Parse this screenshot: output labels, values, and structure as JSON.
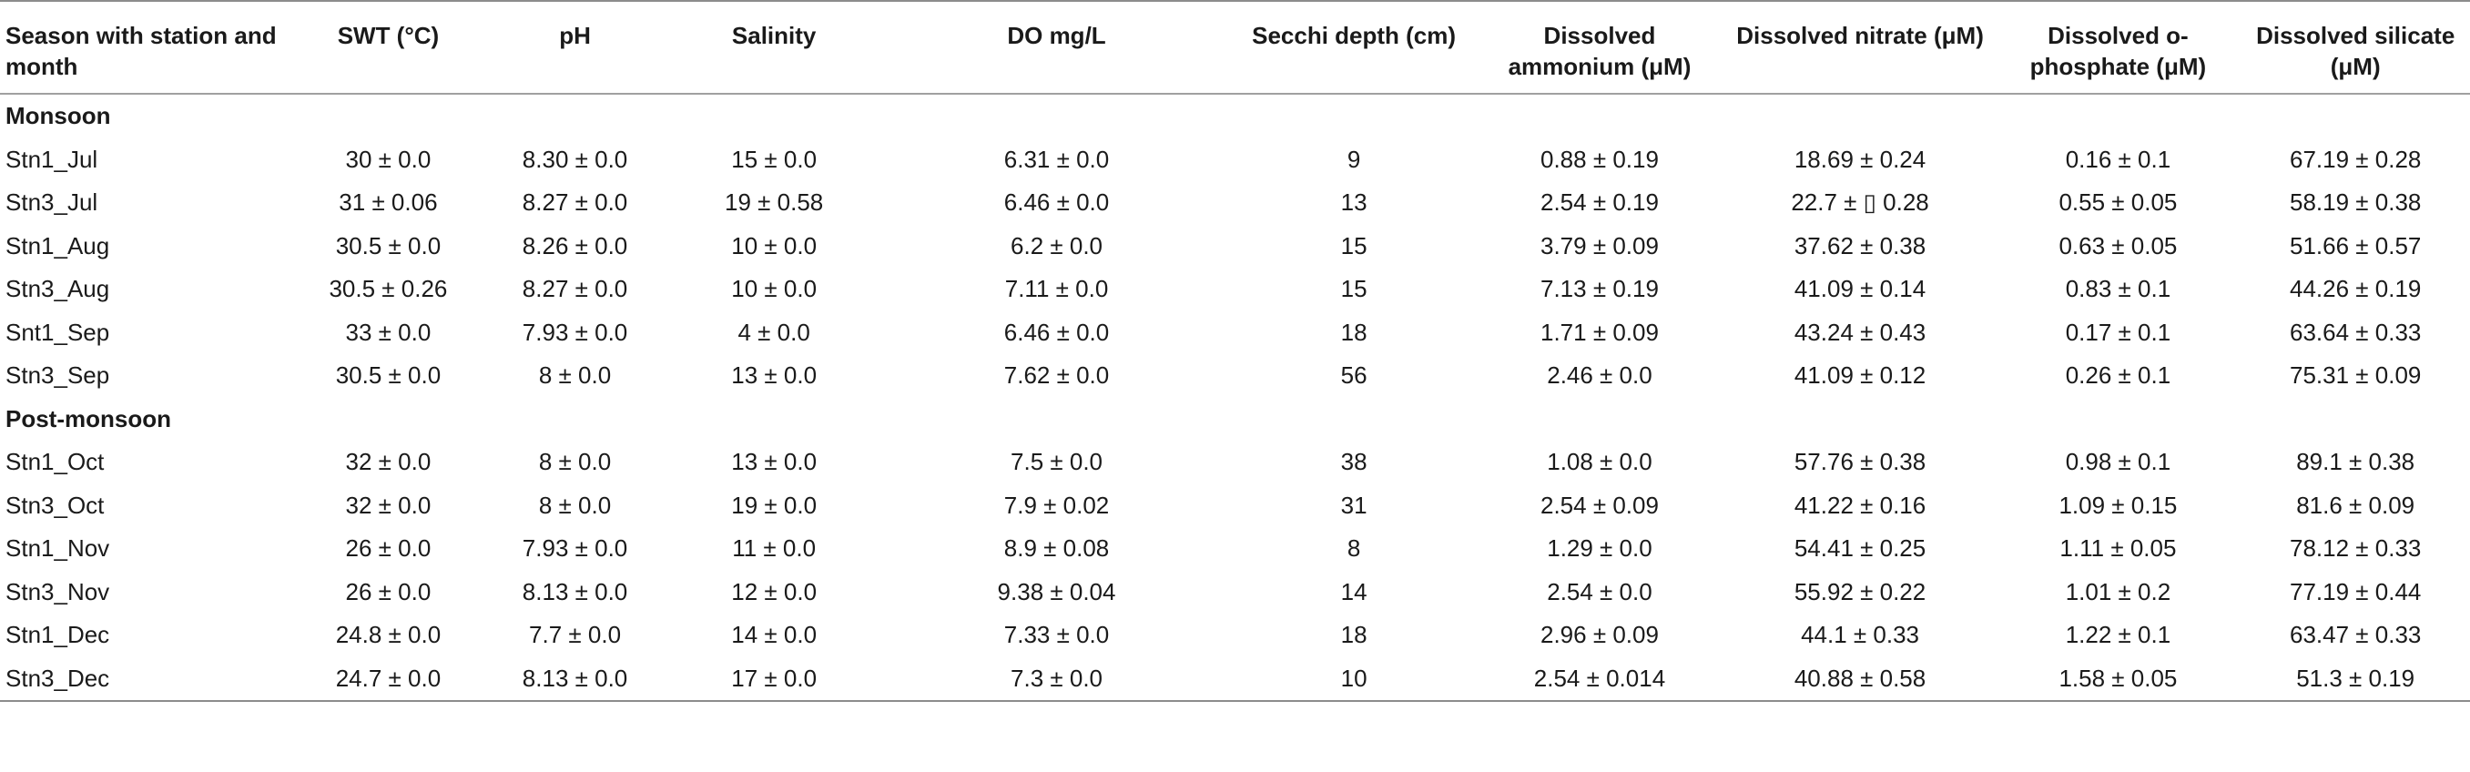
{
  "table": {
    "headers": [
      "Season with station and month",
      "SWT (°C)",
      "pH",
      "Salinity",
      "DO mg/L",
      "Secchi depth (cm)",
      "Dissolved ammonium (μM)",
      "Dissolved nitrate (μM)",
      "Dissolved o-phosphate (μM)",
      "Dissolved silicate (μM)"
    ],
    "sections": [
      {
        "title": "Monsoon",
        "rows": [
          [
            "Stn1_Jul",
            "30 ± 0.0",
            "8.30 ± 0.0",
            "15 ± 0.0",
            "6.31 ± 0.0",
            "9",
            "0.88 ± 0.19",
            "18.69 ± 0.24",
            "0.16 ± 0.1",
            "67.19 ± 0.28"
          ],
          [
            "Stn3_Jul",
            "31 ± 0.06",
            "8.27 ± 0.0",
            "19 ± 0.58",
            "6.46 ± 0.0",
            "13",
            "2.54 ± 0.19",
            "22.7 ± ▯ 0.28",
            "0.55 ± 0.05",
            "58.19 ± 0.38"
          ],
          [
            "Stn1_Aug",
            "30.5 ± 0.0",
            "8.26 ± 0.0",
            "10 ± 0.0",
            "6.2 ± 0.0",
            "15",
            "3.79 ± 0.09",
            "37.62 ± 0.38",
            "0.63 ± 0.05",
            "51.66 ± 0.57"
          ],
          [
            "Stn3_Aug",
            "30.5 ± 0.26",
            "8.27 ± 0.0",
            "10 ± 0.0",
            "7.11 ± 0.0",
            "15",
            "7.13 ± 0.19",
            "41.09 ± 0.14",
            "0.83 ± 0.1",
            "44.26 ± 0.19"
          ],
          [
            "Snt1_Sep",
            "33 ± 0.0",
            "7.93 ± 0.0",
            "4 ± 0.0",
            "6.46 ± 0.0",
            "18",
            "1.71 ± 0.09",
            "43.24 ± 0.43",
            "0.17 ± 0.1",
            "63.64 ± 0.33"
          ],
          [
            "Stn3_Sep",
            "30.5 ± 0.0",
            "8 ± 0.0",
            "13 ± 0.0",
            "7.62 ± 0.0",
            "56",
            "2.46 ± 0.0",
            "41.09 ± 0.12",
            "0.26 ± 0.1",
            "75.31 ± 0.09"
          ]
        ]
      },
      {
        "title": "Post-monsoon",
        "rows": [
          [
            "Stn1_Oct",
            "32 ± 0.0",
            "8 ± 0.0",
            "13 ± 0.0",
            "7.5 ± 0.0",
            "38",
            "1.08 ± 0.0",
            "57.76 ± 0.38",
            "0.98 ± 0.1",
            "89.1 ± 0.38"
          ],
          [
            "Stn3_Oct",
            "32 ± 0.0",
            "8 ± 0.0",
            "19 ± 0.0",
            "7.9 ± 0.02",
            "31",
            "2.54 ± 0.09",
            "41.22 ± 0.16",
            "1.09 ± 0.15",
            "81.6 ± 0.09"
          ],
          [
            "Stn1_Nov",
            "26 ± 0.0",
            "7.93 ± 0.0",
            "11 ± 0.0",
            "8.9 ± 0.08",
            "8",
            "1.29 ± 0.0",
            "54.41 ± 0.25",
            "1.11 ± 0.05",
            "78.12 ± 0.33"
          ],
          [
            "Stn3_Nov",
            "26 ± 0.0",
            "8.13 ± 0.0",
            "12 ± 0.0",
            "9.38 ± 0.04",
            "14",
            "2.54 ± 0.0",
            "55.92 ± 0.22",
            "1.01 ± 0.2",
            "77.19 ± 0.44"
          ],
          [
            "Stn1_Dec",
            "24.8 ± 0.0",
            "7.7 ± 0.0",
            "14 ± 0.0",
            "7.33 ± 0.0",
            "18",
            "2.96 ± 0.09",
            "44.1 ± 0.33",
            "1.22 ± 0.1",
            "63.47 ± 0.33"
          ],
          [
            "Stn3_Dec",
            "24.7 ± 0.0",
            "8.13 ± 0.0",
            "17 ± 0.0",
            "7.3 ± 0.0",
            "10",
            "2.54 ± 0.014",
            "40.88 ± 0.58",
            "1.58 ± 0.05",
            "51.3 ± 0.19"
          ]
        ]
      }
    ]
  }
}
